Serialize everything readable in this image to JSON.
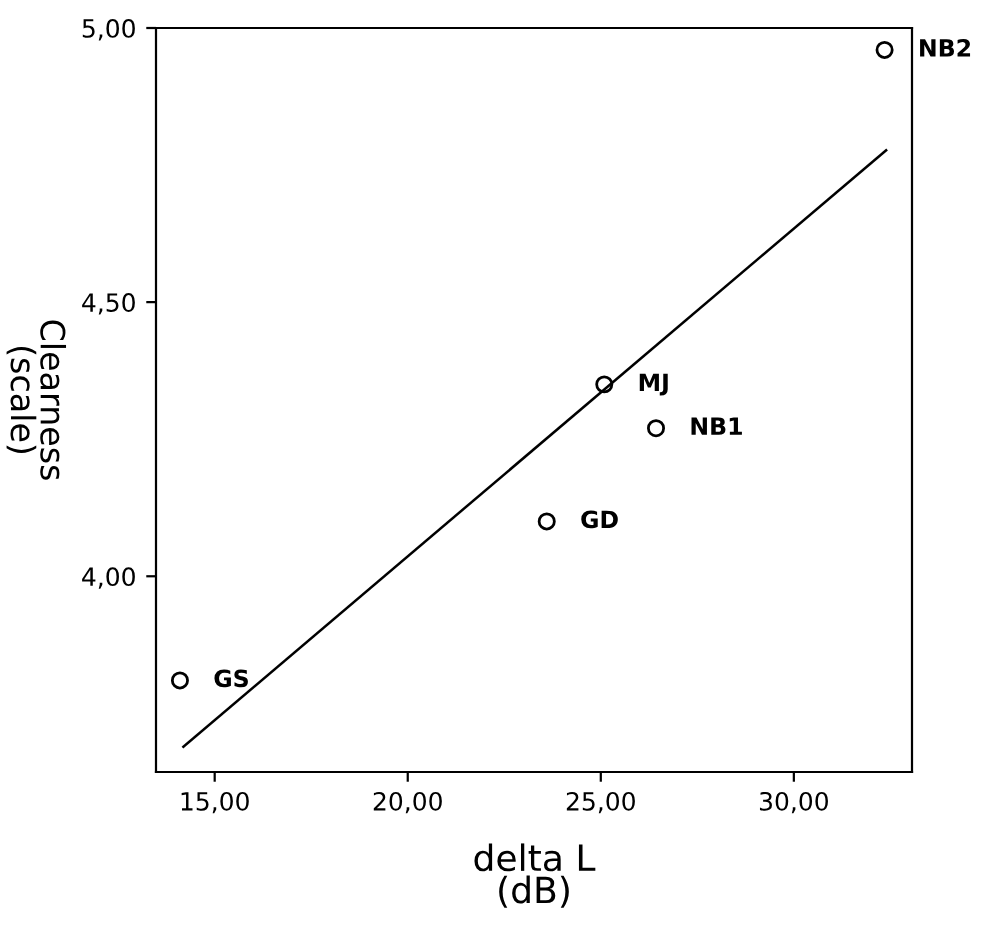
{
  "chart_data": {
    "type": "scatter",
    "xlabel": "delta L\n(dB)",
    "ylabel": "Clearness\n(scale)",
    "xlim": [
      13.48,
      33.06
    ],
    "ylim": [
      3.643,
      5.0
    ],
    "xticks": [
      {
        "value": 15,
        "label": "15,00"
      },
      {
        "value": 20,
        "label": "20,00"
      },
      {
        "value": 25,
        "label": "25,00"
      },
      {
        "value": 30,
        "label": "30,00"
      }
    ],
    "yticks": [
      {
        "value": 4.0,
        "label": "4,00"
      },
      {
        "value": 4.5,
        "label": "4,50"
      },
      {
        "value": 5.0,
        "label": "5,00"
      }
    ],
    "grid": false,
    "legend": false,
    "series": [
      {
        "color": "#000000",
        "marker": "circle",
        "x": [
          14.1,
          23.6,
          25.09,
          26.43,
          32.35
        ],
        "values": [
          3.81,
          4.1,
          4.35,
          4.27,
          4.96
        ]
      },
      {
        "type": "line",
        "color": "#000000",
        "line_style": "solid",
        "x": [
          14.19,
          32.39
        ],
        "values": [
          3.689,
          4.777
        ]
      }
    ],
    "annotations": [
      {
        "text": "GS",
        "x": 14.1,
        "y": 3.81
      },
      {
        "text": "GD",
        "x": 23.6,
        "y": 4.1
      },
      {
        "text": "MJ",
        "x": 25.09,
        "y": 4.35
      },
      {
        "text": "NB1",
        "x": 26.43,
        "y": 4.27
      },
      {
        "text": "NB2",
        "x": 32.35,
        "y": 4.96
      }
    ]
  }
}
